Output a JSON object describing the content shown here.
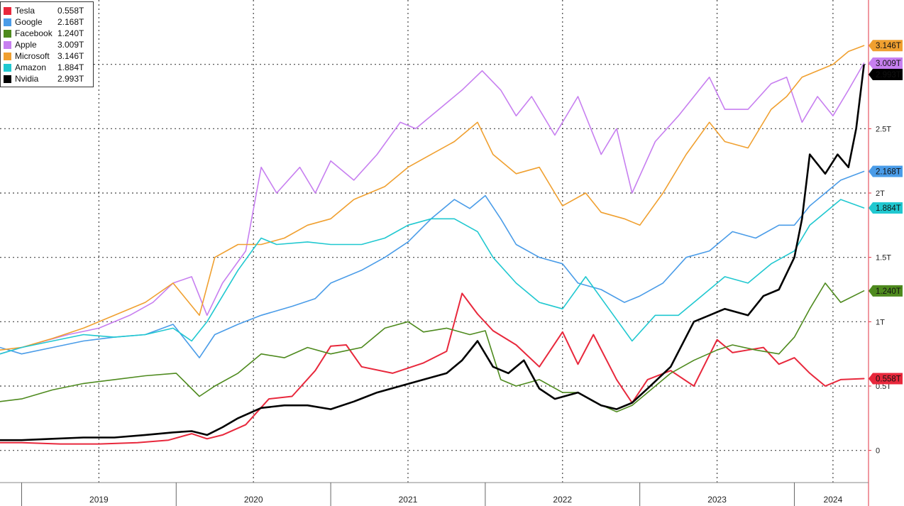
{
  "chart_data": {
    "type": "line",
    "title": "",
    "xlabel": "",
    "ylabel": "",
    "x_range": [
      2018.86,
      2024.48
    ],
    "ylim": [
      -0.25,
      3.5
    ],
    "y_ticks": [
      {
        "value": 0,
        "label": "0"
      },
      {
        "value": 0.5,
        "label": "0.5T"
      },
      {
        "value": 1,
        "label": "1T"
      },
      {
        "value": 1.5,
        "label": "1.5T"
      },
      {
        "value": 2,
        "label": "2T"
      },
      {
        "value": 2.5,
        "label": "2.5T"
      },
      {
        "value": 3,
        "label": ""
      }
    ],
    "x_ticks": [
      {
        "value": 2019.5,
        "label": "2019"
      },
      {
        "value": 2020.5,
        "label": "2020"
      },
      {
        "value": 2021.5,
        "label": "2021"
      },
      {
        "value": 2022.5,
        "label": "2022"
      },
      {
        "value": 2023.5,
        "label": "2023"
      },
      {
        "value": 2024.25,
        "label": "2024"
      }
    ],
    "x_boundaries": [
      2019.0,
      2020.0,
      2021.0,
      2022.0,
      2023.0,
      2024.0
    ],
    "grid": true,
    "legend_position": "top-left",
    "series": [
      {
        "name": "Tesla",
        "value_label": "0.558T",
        "color": "#e8283c",
        "stroke_width": 2,
        "x": [
          2018.86,
          2019.0,
          2019.25,
          2019.5,
          2019.75,
          2019.95,
          2020.1,
          2020.2,
          2020.3,
          2020.45,
          2020.6,
          2020.75,
          2020.9,
          2021.0,
          2021.1,
          2021.2,
          2021.4,
          2021.6,
          2021.75,
          2021.85,
          2021.95,
          2022.05,
          2022.2,
          2022.35,
          2022.5,
          2022.6,
          2022.7,
          2022.85,
          2022.95,
          2023.05,
          2023.2,
          2023.35,
          2023.5,
          2023.6,
          2023.7,
          2023.8,
          2023.9,
          2024.0,
          2024.1,
          2024.2,
          2024.3,
          2024.45
        ],
        "y": [
          0.06,
          0.06,
          0.05,
          0.05,
          0.06,
          0.08,
          0.13,
          0.09,
          0.12,
          0.2,
          0.4,
          0.42,
          0.62,
          0.81,
          0.82,
          0.65,
          0.6,
          0.68,
          0.77,
          1.22,
          1.06,
          0.93,
          0.82,
          0.65,
          0.92,
          0.67,
          0.9,
          0.55,
          0.37,
          0.55,
          0.62,
          0.5,
          0.86,
          0.76,
          0.78,
          0.8,
          0.67,
          0.72,
          0.6,
          0.5,
          0.55,
          0.558
        ]
      },
      {
        "name": "Google",
        "value_label": "2.168T",
        "color": "#4a9ce8",
        "stroke_width": 1.6,
        "x": [
          2018.86,
          2019.0,
          2019.2,
          2019.4,
          2019.6,
          2019.8,
          2019.98,
          2020.15,
          2020.25,
          2020.4,
          2020.55,
          2020.75,
          2020.9,
          2021.0,
          2021.2,
          2021.35,
          2021.5,
          2021.65,
          2021.8,
          2021.9,
          2022.0,
          2022.1,
          2022.2,
          2022.35,
          2022.5,
          2022.6,
          2022.75,
          2022.9,
          2023.0,
          2023.15,
          2023.3,
          2023.45,
          2023.6,
          2023.75,
          2023.9,
          2024.0,
          2024.1,
          2024.2,
          2024.3,
          2024.45
        ],
        "y": [
          0.8,
          0.75,
          0.8,
          0.85,
          0.88,
          0.9,
          0.98,
          0.72,
          0.9,
          0.98,
          1.05,
          1.12,
          1.18,
          1.3,
          1.4,
          1.5,
          1.62,
          1.8,
          1.95,
          1.88,
          1.98,
          1.8,
          1.6,
          1.5,
          1.45,
          1.3,
          1.25,
          1.15,
          1.2,
          1.3,
          1.5,
          1.55,
          1.7,
          1.65,
          1.75,
          1.75,
          1.9,
          2.0,
          2.1,
          2.168
        ]
      },
      {
        "name": "Facebook",
        "value_label": "1.240T",
        "color": "#4e8a1e",
        "stroke_width": 1.6,
        "x": [
          2018.86,
          2019.0,
          2019.2,
          2019.4,
          2019.6,
          2019.8,
          2020.0,
          2020.15,
          2020.25,
          2020.4,
          2020.55,
          2020.7,
          2020.85,
          2021.0,
          2021.2,
          2021.35,
          2021.5,
          2021.6,
          2021.75,
          2021.9,
          2022.0,
          2022.1,
          2022.2,
          2022.35,
          2022.5,
          2022.6,
          2022.7,
          2022.85,
          2022.95,
          2023.05,
          2023.2,
          2023.35,
          2023.5,
          2023.6,
          2023.75,
          2023.9,
          2024.0,
          2024.1,
          2024.2,
          2024.3,
          2024.45
        ],
        "y": [
          0.38,
          0.4,
          0.47,
          0.52,
          0.55,
          0.58,
          0.6,
          0.42,
          0.5,
          0.6,
          0.75,
          0.72,
          0.8,
          0.75,
          0.8,
          0.95,
          1.0,
          0.92,
          0.95,
          0.9,
          0.93,
          0.55,
          0.5,
          0.55,
          0.45,
          0.45,
          0.38,
          0.3,
          0.35,
          0.45,
          0.6,
          0.7,
          0.78,
          0.82,
          0.78,
          0.75,
          0.88,
          1.1,
          1.3,
          1.15,
          1.24
        ]
      },
      {
        "name": "Apple",
        "value_label": "3.009T",
        "color": "#c77ff0",
        "stroke_width": 1.6,
        "x": [
          2018.86,
          2019.0,
          2019.15,
          2019.3,
          2019.5,
          2019.7,
          2019.85,
          2019.98,
          2020.1,
          2020.2,
          2020.3,
          2020.45,
          2020.55,
          2020.65,
          2020.8,
          2020.9,
          2021.0,
          2021.15,
          2021.3,
          2021.45,
          2021.55,
          2021.7,
          2021.85,
          2021.98,
          2022.1,
          2022.2,
          2022.3,
          2022.45,
          2022.6,
          2022.75,
          2022.85,
          2022.95,
          2023.1,
          2023.25,
          2023.45,
          2023.55,
          2023.7,
          2023.85,
          2023.95,
          2024.05,
          2024.15,
          2024.25,
          2024.35,
          2024.45
        ],
        "y": [
          0.75,
          0.8,
          0.85,
          0.9,
          0.95,
          1.05,
          1.15,
          1.3,
          1.35,
          1.05,
          1.3,
          1.55,
          2.2,
          2.0,
          2.2,
          2.0,
          2.25,
          2.1,
          2.3,
          2.55,
          2.5,
          2.65,
          2.8,
          2.95,
          2.8,
          2.6,
          2.75,
          2.45,
          2.75,
          2.3,
          2.5,
          2.0,
          2.4,
          2.6,
          2.9,
          2.65,
          2.65,
          2.85,
          2.9,
          2.55,
          2.75,
          2.6,
          2.8,
          3.009
        ]
      },
      {
        "name": "Microsoft",
        "value_label": "3.146T",
        "color": "#f0a030",
        "stroke_width": 1.6,
        "x": [
          2018.86,
          2019.0,
          2019.2,
          2019.4,
          2019.6,
          2019.8,
          2019.98,
          2020.15,
          2020.25,
          2020.4,
          2020.55,
          2020.7,
          2020.85,
          2021.0,
          2021.15,
          2021.35,
          2021.5,
          2021.65,
          2021.8,
          2021.95,
          2022.05,
          2022.2,
          2022.35,
          2022.5,
          2022.65,
          2022.75,
          2022.9,
          2023.0,
          2023.15,
          2023.3,
          2023.45,
          2023.55,
          2023.7,
          2023.85,
          2023.95,
          2024.05,
          2024.15,
          2024.25,
          2024.35,
          2024.45
        ],
        "y": [
          0.78,
          0.8,
          0.87,
          0.95,
          1.05,
          1.15,
          1.3,
          1.05,
          1.5,
          1.6,
          1.6,
          1.65,
          1.75,
          1.8,
          1.95,
          2.05,
          2.2,
          2.3,
          2.4,
          2.55,
          2.3,
          2.15,
          2.2,
          1.9,
          2.0,
          1.85,
          1.8,
          1.75,
          2.0,
          2.3,
          2.55,
          2.4,
          2.35,
          2.65,
          2.75,
          2.9,
          2.95,
          3.0,
          3.1,
          3.146
        ]
      },
      {
        "name": "Amazon",
        "value_label": "1.884T",
        "color": "#20c8d0",
        "stroke_width": 1.6,
        "x": [
          2018.86,
          2019.0,
          2019.2,
          2019.4,
          2019.6,
          2019.8,
          2019.98,
          2020.1,
          2020.2,
          2020.3,
          2020.4,
          2020.55,
          2020.65,
          2020.85,
          2021.0,
          2021.2,
          2021.35,
          2021.5,
          2021.65,
          2021.8,
          2021.95,
          2022.05,
          2022.2,
          2022.35,
          2022.5,
          2022.65,
          2022.8,
          2022.95,
          2023.1,
          2023.25,
          2023.4,
          2023.55,
          2023.7,
          2023.85,
          2024.0,
          2024.1,
          2024.2,
          2024.3,
          2024.45
        ],
        "y": [
          0.75,
          0.8,
          0.85,
          0.9,
          0.88,
          0.9,
          0.95,
          0.85,
          1.0,
          1.2,
          1.4,
          1.65,
          1.6,
          1.62,
          1.6,
          1.6,
          1.65,
          1.75,
          1.8,
          1.8,
          1.7,
          1.5,
          1.3,
          1.15,
          1.1,
          1.35,
          1.1,
          0.85,
          1.05,
          1.05,
          1.2,
          1.35,
          1.3,
          1.45,
          1.55,
          1.75,
          1.85,
          1.95,
          1.884
        ]
      },
      {
        "name": "Nvidia",
        "value_label": "2.993T",
        "color": "#000000",
        "stroke_width": 2.6,
        "x": [
          2018.86,
          2019.0,
          2019.2,
          2019.4,
          2019.6,
          2019.8,
          2019.98,
          2020.1,
          2020.2,
          2020.3,
          2020.4,
          2020.55,
          2020.7,
          2020.85,
          2021.0,
          2021.15,
          2021.3,
          2021.45,
          2021.6,
          2021.75,
          2021.85,
          2021.95,
          2022.05,
          2022.15,
          2022.25,
          2022.35,
          2022.45,
          2022.6,
          2022.75,
          2022.85,
          2022.95,
          2023.05,
          2023.2,
          2023.35,
          2023.45,
          2023.55,
          2023.7,
          2023.8,
          2023.9,
          2024.0,
          2024.05,
          2024.1,
          2024.2,
          2024.28,
          2024.35,
          2024.4,
          2024.45
        ],
        "y": [
          0.08,
          0.08,
          0.09,
          0.1,
          0.1,
          0.12,
          0.14,
          0.15,
          0.12,
          0.18,
          0.25,
          0.33,
          0.35,
          0.35,
          0.32,
          0.38,
          0.45,
          0.5,
          0.55,
          0.6,
          0.7,
          0.85,
          0.65,
          0.6,
          0.7,
          0.48,
          0.4,
          0.45,
          0.35,
          0.32,
          0.37,
          0.48,
          0.65,
          1.0,
          1.05,
          1.1,
          1.05,
          1.2,
          1.25,
          1.5,
          1.8,
          2.3,
          2.15,
          2.3,
          2.2,
          2.5,
          2.993
        ]
      }
    ]
  }
}
